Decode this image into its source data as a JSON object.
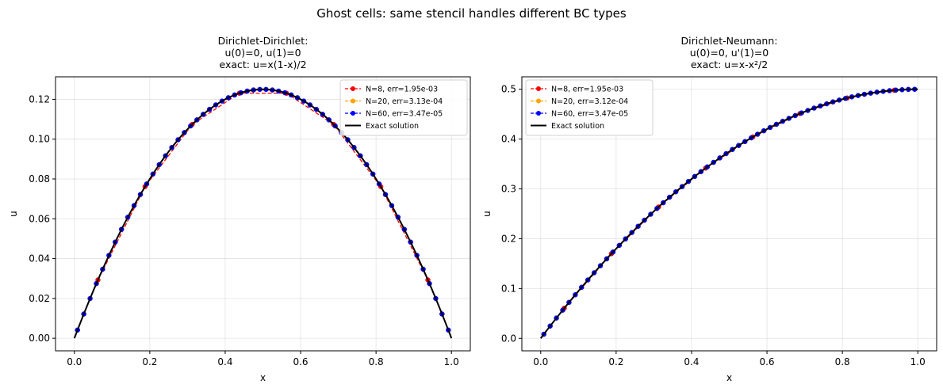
{
  "figure": {
    "suptitle": "Ghost cells: same stencil handles different BC types"
  },
  "chart_data": [
    {
      "type": "line",
      "title_lines": [
        "Dirichlet-Dirichlet:",
        "u(0)=0, u(1)=0",
        "exact: u=x(1-x)/2"
      ],
      "xlabel": "x",
      "ylabel": "u",
      "xlim": [
        -0.05,
        1.05
      ],
      "ylim": [
        -0.0063,
        0.1313
      ],
      "xticks": [
        0.0,
        0.2,
        0.4,
        0.6,
        0.8,
        1.0
      ],
      "xtick_labels": [
        "0.0",
        "0.2",
        "0.4",
        "0.6",
        "0.8",
        "1.0"
      ],
      "yticks": [
        0.0,
        0.02,
        0.04,
        0.06,
        0.08,
        0.1,
        0.12
      ],
      "ytick_labels": [
        "0.00",
        "0.02",
        "0.04",
        "0.06",
        "0.08",
        "0.10",
        "0.12"
      ],
      "grid": true,
      "legend_position": "upper-right",
      "exact": "x(1-x)/2",
      "series": [
        {
          "name": "N=8, err=1.95e-03",
          "color": "#ff0000",
          "N": 8
        },
        {
          "name": "N=20, err=3.13e-04",
          "color": "#ffa500",
          "N": 20
        },
        {
          "name": "N=60, err=3.47e-05",
          "color": "#0000ff",
          "N": 60
        },
        {
          "name": "Exact solution",
          "color": "#000000",
          "exact": true
        }
      ]
    },
    {
      "type": "line",
      "title_lines": [
        "Dirichlet-Neumann:",
        "u(0)=0, u'(1)=0",
        "exact: u=x-x²/2"
      ],
      "xlabel": "x",
      "ylabel": "u",
      "xlim": [
        -0.05,
        1.05
      ],
      "ylim": [
        -0.025,
        0.525
      ],
      "xticks": [
        0.0,
        0.2,
        0.4,
        0.6,
        0.8,
        1.0
      ],
      "xtick_labels": [
        "0.0",
        "0.2",
        "0.4",
        "0.6",
        "0.8",
        "1.0"
      ],
      "yticks": [
        0.0,
        0.1,
        0.2,
        0.3,
        0.4,
        0.5
      ],
      "ytick_labels": [
        "0.0",
        "0.1",
        "0.2",
        "0.3",
        "0.4",
        "0.5"
      ],
      "grid": true,
      "legend_position": "upper-left",
      "exact": "x-x^2/2",
      "series": [
        {
          "name": "N=8, err=1.95e-03",
          "color": "#ff0000",
          "N": 8
        },
        {
          "name": "N=20, err=3.12e-04",
          "color": "#ffa500",
          "N": 20
        },
        {
          "name": "N=60, err=3.47e-05",
          "color": "#0000ff",
          "N": 60
        },
        {
          "name": "Exact solution",
          "color": "#000000",
          "exact": true
        }
      ]
    }
  ]
}
